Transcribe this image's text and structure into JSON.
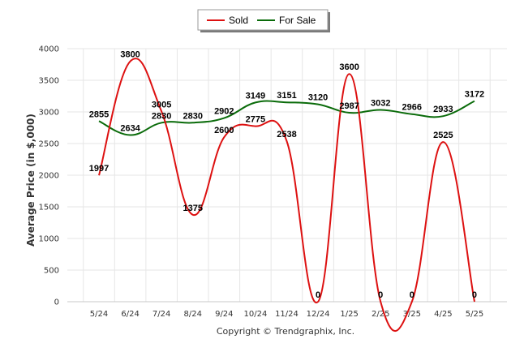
{
  "chart_data": {
    "type": "line",
    "title": "",
    "xlabel": "",
    "ylabel": "Average Price (in $,000)",
    "footer": "Copyright © Trendgraphix, Inc.",
    "categories": [
      "5/24",
      "6/24",
      "7/24",
      "8/24",
      "9/24",
      "10/24",
      "11/24",
      "12/24",
      "1/25",
      "2/25",
      "3/25",
      "4/25",
      "5/25"
    ],
    "ylim": [
      0,
      4000
    ],
    "yticks": [
      0,
      500,
      1000,
      1500,
      2000,
      2500,
      3000,
      3500,
      4000
    ],
    "grid": true,
    "legend_position": "top-center",
    "series": [
      {
        "name": "Sold",
        "color": "#dd1111",
        "values": [
          1997,
          3800,
          3005,
          1375,
          2600,
          2775,
          2538,
          0,
          3600,
          0,
          0,
          2525,
          0
        ]
      },
      {
        "name": "For Sale",
        "color": "#0a6b0a",
        "values": [
          2855,
          2634,
          2830,
          2830,
          2902,
          3149,
          3151,
          3120,
          2987,
          3032,
          2966,
          2933,
          3172
        ]
      }
    ]
  }
}
